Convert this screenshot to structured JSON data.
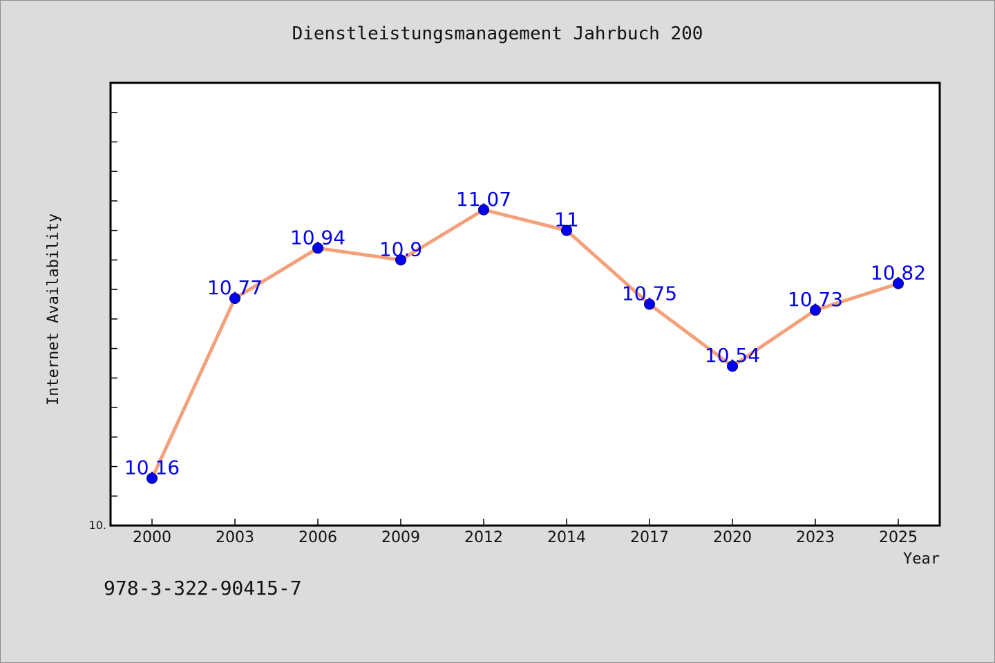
{
  "chart_data": {
    "type": "line",
    "title": "Dienstleistungsmanagement Jahrbuch 200",
    "xlabel": "Year",
    "ylabel": "Internet Availability",
    "categories": [
      "2000",
      "2003",
      "2006",
      "2009",
      "2012",
      "2014",
      "2017",
      "2020",
      "2023",
      "2025"
    ],
    "series": [
      {
        "values": [
          10.16,
          10.77,
          10.94,
          10.9,
          11.07,
          11,
          10.75,
          10.54,
          10.73,
          10.82
        ],
        "labels": [
          "10.16",
          "10.77",
          "10.94",
          "10.9",
          "11.07",
          "11",
          "10.75",
          "10.54",
          "10.73",
          "10.82"
        ]
      }
    ],
    "y_tick_label": "10.",
    "ylim": [
      10.0,
      11.5
    ],
    "y_tick_step": 0.1,
    "grid": false,
    "line_color": "#f4a07a",
    "marker_color": "#0000ee",
    "label_color": "#0000ee"
  },
  "footer": {
    "isbn": "978-3-322-90415-7"
  }
}
